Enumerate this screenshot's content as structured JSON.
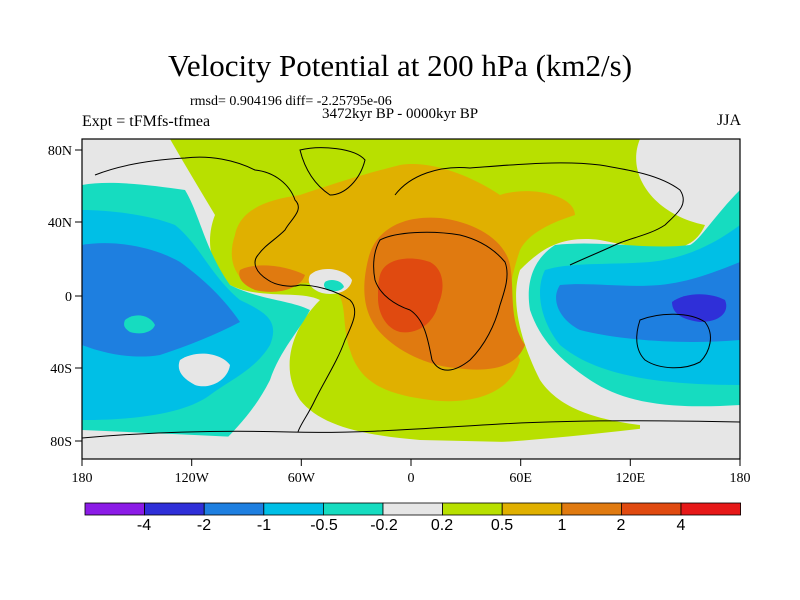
{
  "title": "Velocity Potential at 200 hPa (km2/s)",
  "stats": "rmsd= 0.904196 diff= -2.25795e-06",
  "period": "3472kyr BP - 0000kyr BP",
  "experiment": "Expt = tFMfs-tfmea",
  "season": "JJA",
  "axes": {
    "lon_ticks": [
      "180",
      "120W",
      "60W",
      "0",
      "60E",
      "120E",
      "180"
    ],
    "lat_ticks": [
      "80N",
      "40N",
      "0",
      "40S",
      "80S"
    ]
  },
  "colorbar": {
    "labels": [
      "-4",
      "-2",
      "-1",
      "-0.5",
      "-0.2",
      "0.2",
      "0.5",
      "1",
      "2",
      "4"
    ],
    "colors": [
      "#8b1be6",
      "#2f2fd8",
      "#1e7fe0",
      "#00bfe6",
      "#16dcc0",
      "#e6e6e6",
      "#b8e000",
      "#e0b000",
      "#e07a10",
      "#e04a10",
      "#e61818"
    ]
  },
  "palette": {
    "ocean_gray": "#e6e6e6",
    "lime": "#b8e000",
    "gold": "#e0b000",
    "orange": "#e07a10",
    "red_orange": "#e04a10",
    "cyan": "#00bfe6",
    "teal": "#16dcc0",
    "blue": "#1e7fe0",
    "dark_blue": "#2f2fd8"
  }
}
